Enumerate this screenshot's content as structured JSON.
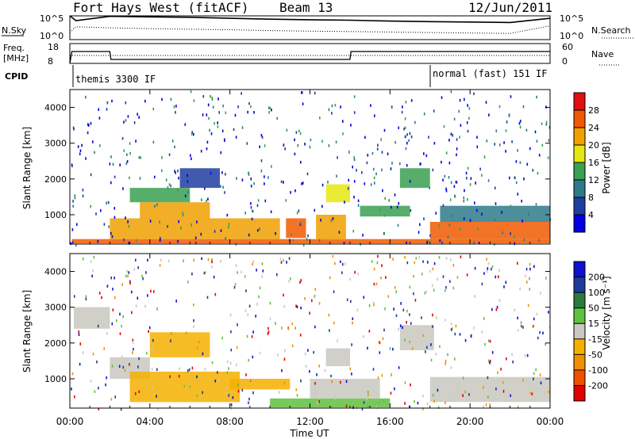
{
  "header": {
    "title": "Fort Hays West (fitACF)",
    "beam": "Beam 13",
    "date": "12/Jun/2011"
  },
  "nsky_panel": {
    "left_label": "N.Sky",
    "right_label": "N.Search",
    "left_ticks": [
      "10^5",
      "10^0"
    ],
    "right_ticks": [
      "10^5",
      "10^0"
    ]
  },
  "freq_panel": {
    "left_label_1": "Freq.",
    "left_label_2": "[MHz]",
    "right_label": "Nave",
    "left_ticks": [
      "18",
      "8"
    ],
    "right_ticks": [
      "60",
      "0"
    ]
  },
  "cpid": {
    "label": "CPID",
    "segments": [
      {
        "start_hour": 0,
        "text": "themis 3300 IF"
      },
      {
        "start_hour": 18,
        "text": "normal (fast) 151 IF"
      }
    ]
  },
  "time_axis": {
    "label": "Time UT",
    "ticks": [
      "00:00",
      "04:00",
      "08:00",
      "12:00",
      "16:00",
      "20:00",
      "00:00"
    ]
  },
  "colorbars": {
    "power": {
      "label": "Power [dB]",
      "ticks": [
        "28",
        "24",
        "20",
        "16",
        "12",
        "8",
        "4"
      ],
      "colors": [
        "#0000e0",
        "#1e3ea0",
        "#2e7a8a",
        "#38a050",
        "#e6e610",
        "#f0a000",
        "#f05a00",
        "#e01010"
      ]
    },
    "velocity": {
      "label": "Velocity [m s⁻¹]",
      "ticks": [
        "200",
        "100",
        "50",
        "15",
        "-15",
        "-50",
        "-100",
        "-200"
      ],
      "colors": [
        "#e00000",
        "#f05000",
        "#f09000",
        "#f4b000",
        "#c8c8c0",
        "#60c040",
        "#2a7a40",
        "#1c3c9a",
        "#1010d0"
      ]
    }
  },
  "chart_data": [
    {
      "type": "line",
      "title": "N.Sky / N.Search",
      "x": [
        0,
        0.3,
        2,
        4,
        6,
        8,
        10,
        12,
        14,
        16,
        18,
        20,
        22,
        24
      ],
      "series": [
        {
          "name": "N.Sky",
          "values": [
            1000000,
            10000,
            80000,
            60000,
            50000,
            30000,
            20000,
            15000,
            12000,
            8000,
            6000,
            5000,
            4000,
            30000
          ]
        },
        {
          "name": "N.Search",
          "values": [
            30,
            500,
            300,
            200,
            150,
            120,
            80,
            60,
            50,
            40,
            30,
            25,
            20,
            800
          ]
        }
      ],
      "ylim": [
        1,
        100000
      ],
      "yscale": "log"
    },
    {
      "type": "line",
      "title": "Freq / Nave",
      "x": [
        0,
        0.1,
        2,
        2.05,
        14,
        14.05,
        24
      ],
      "series": [
        {
          "name": "Freq.",
          "values": [
            8,
            14,
            14,
            10,
            10,
            14,
            14
          ]
        },
        {
          "name": "Nave",
          "values": [
            12,
            12,
            12,
            12,
            12,
            12,
            12
          ]
        }
      ],
      "ylim": [
        8,
        18
      ]
    },
    {
      "type": "heatmap",
      "title": "Power [dB]",
      "xlabel": "Time UT",
      "ylabel": "Slant Range [km]",
      "xlim": [
        0,
        24
      ],
      "ylim": [
        180,
        4500
      ],
      "yticks": [
        1000,
        2000,
        3000,
        4000
      ],
      "value_ticks": [
        4,
        8,
        12,
        16,
        20,
        24,
        28
      ],
      "regions": [
        {
          "t0": 0.1,
          "t1": 24,
          "r0": 200,
          "r1": 320,
          "value": 24
        },
        {
          "t0": 2.0,
          "t1": 10.5,
          "r0": 320,
          "r1": 900,
          "value": 22
        },
        {
          "t0": 3.5,
          "t1": 7.0,
          "r0": 900,
          "r1": 1350,
          "value": 20
        },
        {
          "t0": 3.0,
          "t1": 6.0,
          "r0": 1350,
          "r1": 1750,
          "value": 12
        },
        {
          "t0": 5.5,
          "t1": 7.5,
          "r0": 1750,
          "r1": 2300,
          "value": 6
        },
        {
          "t0": 10.8,
          "t1": 11.8,
          "r0": 350,
          "r1": 900,
          "value": 26
        },
        {
          "t0": 12.3,
          "t1": 13.8,
          "r0": 300,
          "r1": 1000,
          "value": 22
        },
        {
          "t0": 12.8,
          "t1": 14.0,
          "r0": 1350,
          "r1": 1850,
          "value": 18
        },
        {
          "t0": 14.5,
          "t1": 17.0,
          "r0": 950,
          "r1": 1250,
          "value": 14
        },
        {
          "t0": 16.5,
          "t1": 18.0,
          "r0": 1750,
          "r1": 2300,
          "value": 12
        },
        {
          "t0": 18.0,
          "t1": 24.0,
          "r0": 320,
          "r1": 800,
          "value": 24
        },
        {
          "t0": 18.5,
          "t1": 24.0,
          "r0": 800,
          "r1": 1250,
          "value": 8
        }
      ]
    },
    {
      "type": "heatmap",
      "title": "Velocity [m s⁻¹]",
      "xlabel": "Time UT",
      "ylabel": "Slant Range [km]",
      "xlim": [
        0,
        24
      ],
      "ylim": [
        180,
        4500
      ],
      "yticks": [
        1000,
        2000,
        3000,
        4000
      ],
      "value_ticks": [
        200,
        100,
        50,
        15,
        -15,
        -50,
        -100,
        -200
      ],
      "regions": [
        {
          "t0": 0.2,
          "t1": 2.0,
          "r0": 2400,
          "r1": 3000,
          "value": 0
        },
        {
          "t0": 2.0,
          "t1": 4.0,
          "r0": 1000,
          "r1": 1600,
          "value": 0
        },
        {
          "t0": 3.0,
          "t1": 8.5,
          "r0": 350,
          "r1": 1200,
          "value": -35
        },
        {
          "t0": 4.0,
          "t1": 7.0,
          "r0": 1600,
          "r1": 2300,
          "value": -35
        },
        {
          "t0": 8.0,
          "t1": 11.0,
          "r0": 700,
          "r1": 1000,
          "value": -30
        },
        {
          "t0": 10.0,
          "t1": 16.0,
          "r0": 200,
          "r1": 450,
          "value": 35
        },
        {
          "t0": 12.0,
          "t1": 15.5,
          "r0": 450,
          "r1": 1000,
          "value": 0
        },
        {
          "t0": 16.5,
          "t1": 18.2,
          "r0": 1800,
          "r1": 2500,
          "value": 0
        },
        {
          "t0": 18.0,
          "t1": 24.0,
          "r0": 350,
          "r1": 1050,
          "value": 0
        },
        {
          "t0": 12.8,
          "t1": 14.0,
          "r0": 1350,
          "r1": 1850,
          "value": 5
        }
      ]
    }
  ]
}
